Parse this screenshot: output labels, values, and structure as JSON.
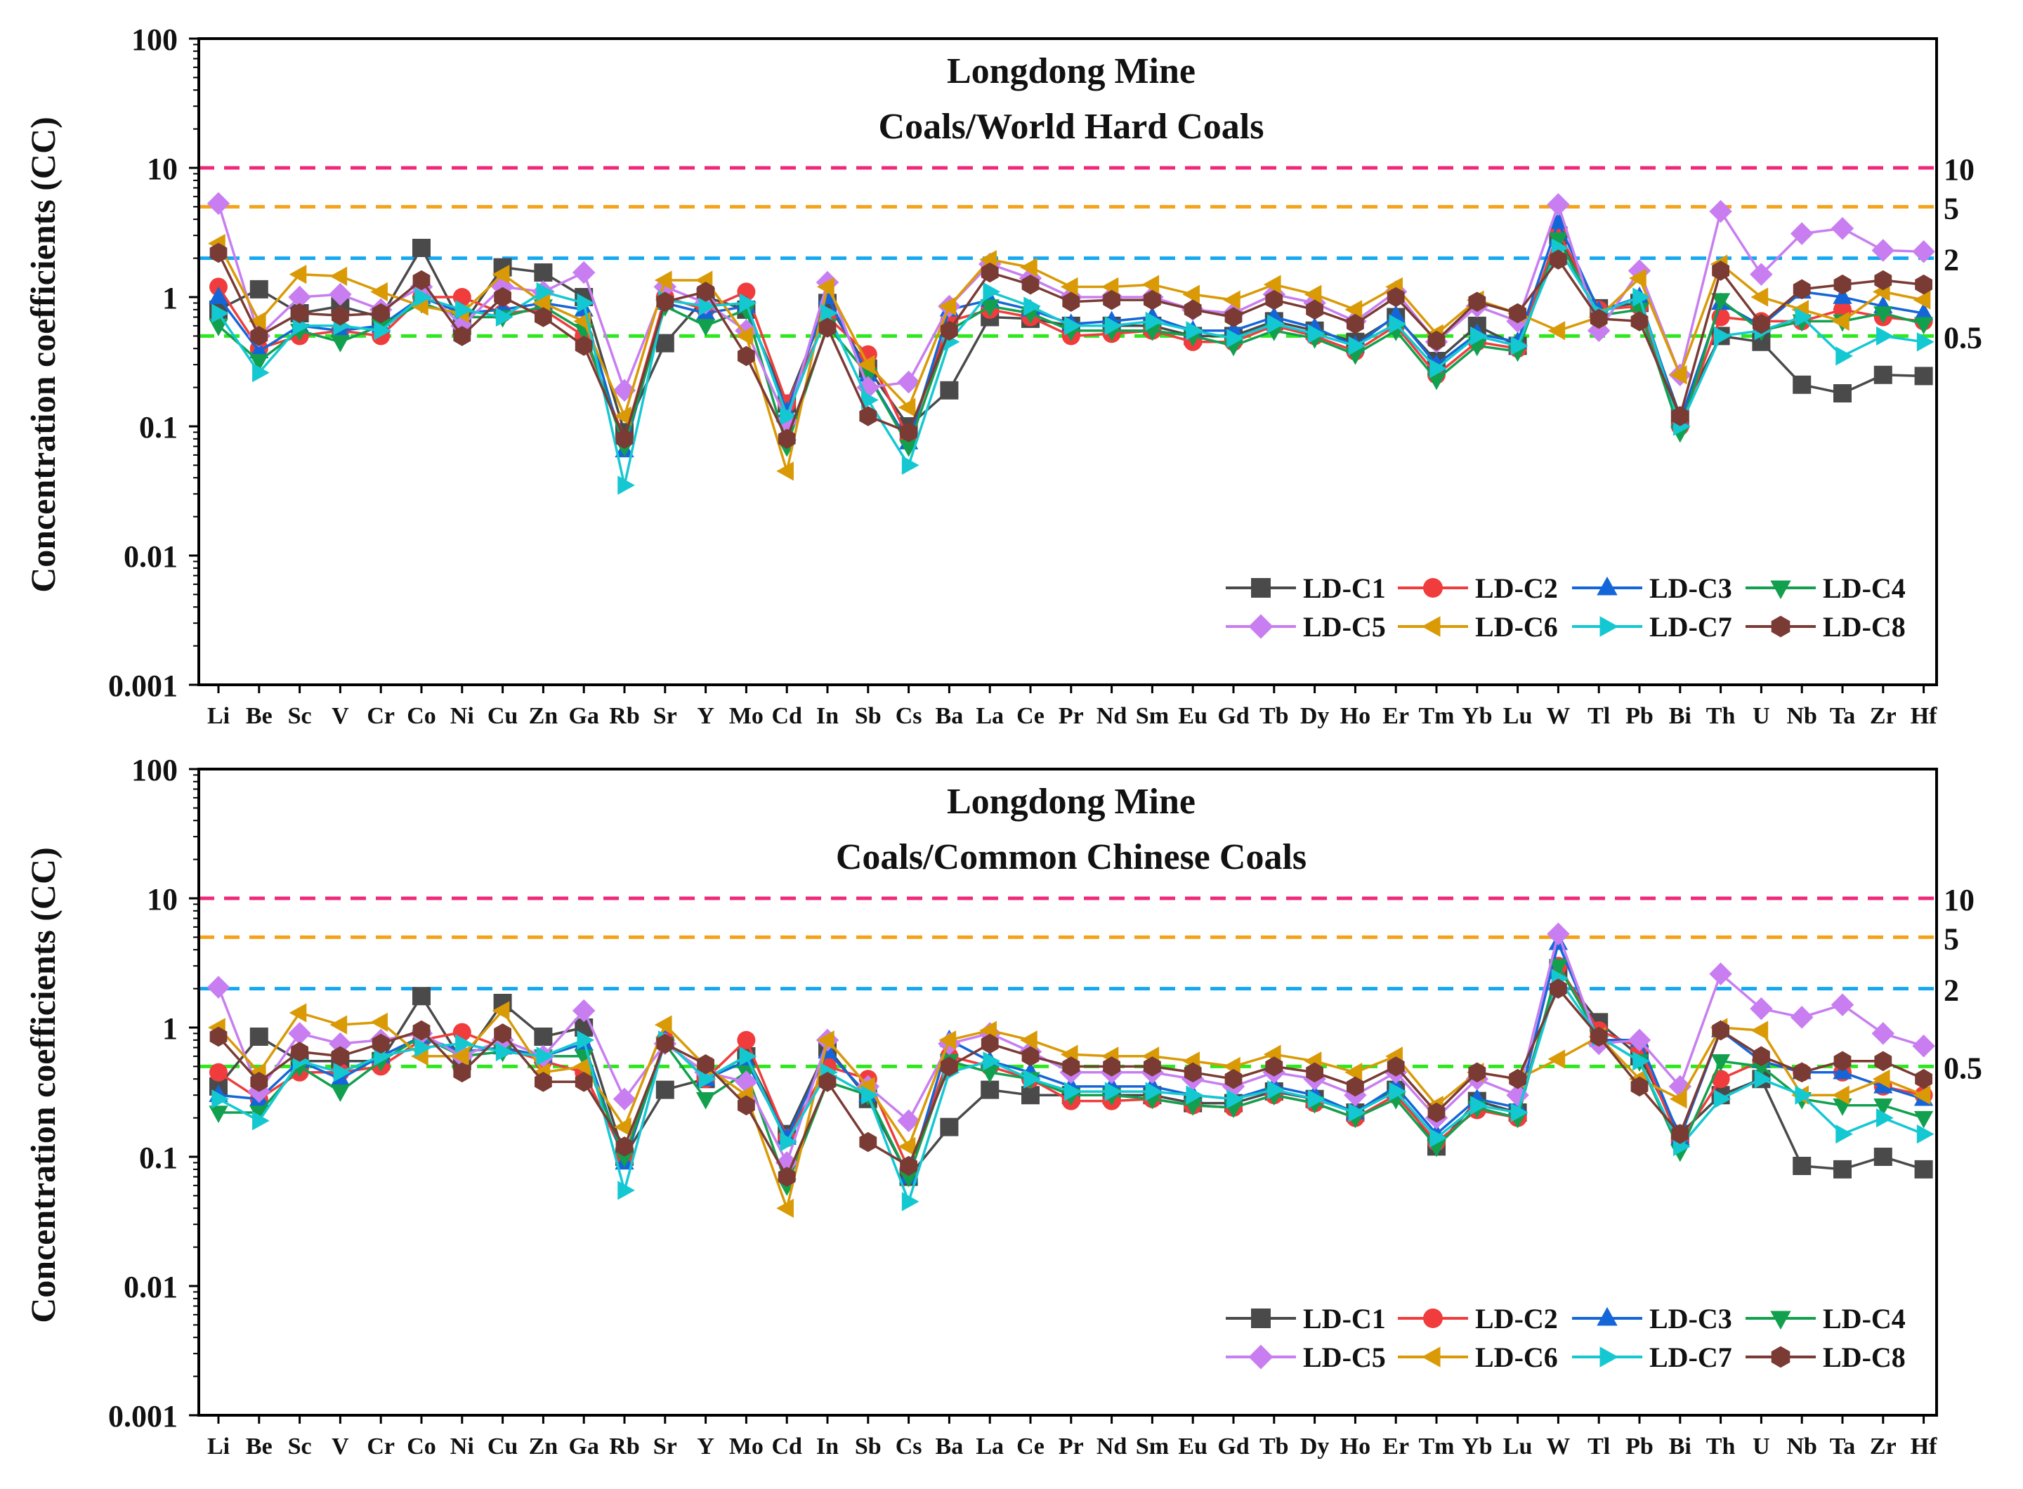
{
  "figure": {
    "y_axis_label": "Concentration coefficients (CC)"
  },
  "styles": {
    "series": [
      {
        "name": "LD-C1",
        "color": "#4a4a4a",
        "marker": "square"
      },
      {
        "name": "LD-C2",
        "color": "#f03c3c",
        "marker": "circle"
      },
      {
        "name": "LD-C3",
        "color": "#1466d8",
        "marker": "triangle-up"
      },
      {
        "name": "LD-C4",
        "color": "#12a04e",
        "marker": "triangle-down"
      },
      {
        "name": "LD-C5",
        "color": "#c87ef0",
        "marker": "diamond"
      },
      {
        "name": "LD-C6",
        "color": "#d99a06",
        "marker": "triangle-left"
      },
      {
        "name": "LD-C7",
        "color": "#14c8d2",
        "marker": "triangle-right"
      },
      {
        "name": "LD-C8",
        "color": "#7a3b34",
        "marker": "hexagon"
      }
    ],
    "reference_lines": [
      {
        "value": 10,
        "label": "10",
        "color": "#f0287a"
      },
      {
        "value": 5,
        "label": "5",
        "color": "#f4a21a"
      },
      {
        "value": 2,
        "label": "2",
        "color": "#14a8f0"
      },
      {
        "value": 0.5,
        "label": "0.5",
        "color": "#2ee81e"
      }
    ]
  },
  "chart_data": [
    {
      "type": "line",
      "title": "Longdong Mine",
      "subtitle": "Coals/World Hard Coals",
      "ylabel": "Concentration coefficients (CC)",
      "yscale": "log",
      "ylim": [
        0.001,
        100
      ],
      "ytick_labels": [
        "0.001",
        "0.01",
        "0.1",
        "1",
        "10",
        "100"
      ],
      "right_axis_labels": [
        "10",
        "5",
        "2",
        "0.5"
      ],
      "legend_position": "lower-right",
      "categories": [
        "Li",
        "Be",
        "Sc",
        "V",
        "Cr",
        "Co",
        "Ni",
        "Cu",
        "Zn",
        "Ga",
        "Rb",
        "Sr",
        "Y",
        "Mo",
        "Cd",
        "In",
        "Sb",
        "Cs",
        "Ba",
        "La",
        "Ce",
        "Pr",
        "Nd",
        "Sm",
        "Eu",
        "Gd",
        "Tb",
        "Dy",
        "Ho",
        "Er",
        "Tm",
        "Yb",
        "Lu",
        "W",
        "Tl",
        "Pb",
        "Bi",
        "Th",
        "U",
        "Nb",
        "Ta",
        "Zr",
        "Hf"
      ],
      "series": [
        {
          "name": "LD-C1",
          "values": [
            0.8,
            1.15,
            0.75,
            0.85,
            0.7,
            2.4,
            0.6,
            1.7,
            1.55,
            1.0,
            0.09,
            0.44,
            1.0,
            0.8,
            0.15,
            0.9,
            0.28,
            0.1,
            0.19,
            0.7,
            0.68,
            0.6,
            0.6,
            0.6,
            0.5,
            0.5,
            0.65,
            0.55,
            0.45,
            0.7,
            0.32,
            0.6,
            0.42,
            3.0,
            0.82,
            0.9,
            0.12,
            0.5,
            0.45,
            0.21,
            0.18,
            0.25,
            0.245
          ]
        },
        {
          "name": "LD-C2",
          "values": [
            1.2,
            0.4,
            0.5,
            0.55,
            0.5,
            1.0,
            1.0,
            0.75,
            0.8,
            0.5,
            0.08,
            1.0,
            0.8,
            1.1,
            0.15,
            0.7,
            0.36,
            0.08,
            0.65,
            0.8,
            0.7,
            0.5,
            0.52,
            0.55,
            0.45,
            0.45,
            0.6,
            0.5,
            0.38,
            0.6,
            0.25,
            0.45,
            0.4,
            3.2,
            0.8,
            0.85,
            0.1,
            0.7,
            0.65,
            0.65,
            0.8,
            0.7,
            0.65
          ]
        },
        {
          "name": "LD-C3",
          "values": [
            1.0,
            0.38,
            0.6,
            0.55,
            0.6,
            1.0,
            0.75,
            0.8,
            0.9,
            0.8,
            0.065,
            0.9,
            0.75,
            0.85,
            0.13,
            1.0,
            0.25,
            0.075,
            0.8,
            0.95,
            0.8,
            0.62,
            0.65,
            0.7,
            0.55,
            0.55,
            0.7,
            0.58,
            0.42,
            0.72,
            0.3,
            0.52,
            0.45,
            3.8,
            0.78,
            1.0,
            0.11,
            0.9,
            0.6,
            1.1,
            1.0,
            0.85,
            0.75
          ]
        },
        {
          "name": "LD-C4",
          "values": [
            0.6,
            0.32,
            0.55,
            0.45,
            0.6,
            0.9,
            0.7,
            0.7,
            0.85,
            0.55,
            0.07,
            0.85,
            0.6,
            0.8,
            0.07,
            0.6,
            0.25,
            0.07,
            0.55,
            0.85,
            0.75,
            0.55,
            0.55,
            0.55,
            0.5,
            0.42,
            0.55,
            0.48,
            0.36,
            0.55,
            0.23,
            0.42,
            0.38,
            2.8,
            0.72,
            0.8,
            0.09,
            0.95,
            0.55,
            0.65,
            0.65,
            0.75,
            0.62
          ]
        },
        {
          "name": "LD-C5",
          "values": [
            5.3,
            0.5,
            1.0,
            1.05,
            0.8,
            1.2,
            0.6,
            1.2,
            1.1,
            1.55,
            0.19,
            1.2,
            0.9,
            0.55,
            0.11,
            1.3,
            0.2,
            0.22,
            0.85,
            1.8,
            1.4,
            1.0,
            1.0,
            1.0,
            0.8,
            0.75,
            1.05,
            0.9,
            0.65,
            1.1,
            0.45,
            0.85,
            0.65,
            5.2,
            0.55,
            1.6,
            0.25,
            4.6,
            1.5,
            3.1,
            3.4,
            2.3,
            2.25
          ]
        },
        {
          "name": "LD-C6",
          "values": [
            2.6,
            0.65,
            1.5,
            1.45,
            1.1,
            0.85,
            0.75,
            1.5,
            0.9,
            0.65,
            0.12,
            1.35,
            1.35,
            0.5,
            0.045,
            1.2,
            0.3,
            0.14,
            0.85,
            1.95,
            1.7,
            1.2,
            1.2,
            1.25,
            1.05,
            0.95,
            1.25,
            1.05,
            0.8,
            1.2,
            0.52,
            0.95,
            0.75,
            0.55,
            0.7,
            1.4,
            0.25,
            1.8,
            1.0,
            0.8,
            0.65,
            1.1,
            0.95
          ]
        },
        {
          "name": "LD-C7",
          "values": [
            0.75,
            0.26,
            0.6,
            0.6,
            0.55,
            1.0,
            0.8,
            0.7,
            1.1,
            0.9,
            0.035,
            0.95,
            0.85,
            0.9,
            0.12,
            0.75,
            0.16,
            0.05,
            0.45,
            1.1,
            0.85,
            0.6,
            0.6,
            0.65,
            0.55,
            0.48,
            0.62,
            0.52,
            0.42,
            0.62,
            0.28,
            0.5,
            0.42,
            2.4,
            0.75,
            1.0,
            0.1,
            0.5,
            0.55,
            0.7,
            0.35,
            0.5,
            0.45
          ]
        },
        {
          "name": "LD-C8",
          "values": [
            2.2,
            0.5,
            0.75,
            0.72,
            0.75,
            1.35,
            0.5,
            1.0,
            0.7,
            0.42,
            0.08,
            0.92,
            1.1,
            0.35,
            0.08,
            0.58,
            0.12,
            0.09,
            0.55,
            1.55,
            1.25,
            0.92,
            0.95,
            0.95,
            0.8,
            0.7,
            0.95,
            0.8,
            0.62,
            1.0,
            0.46,
            0.92,
            0.75,
            1.95,
            0.68,
            0.65,
            0.12,
            1.6,
            0.62,
            1.15,
            1.25,
            1.35,
            1.25
          ]
        }
      ]
    },
    {
      "type": "line",
      "title": "Longdong Mine",
      "subtitle": "Coals/Common Chinese Coals",
      "ylabel": "Concentration coefficients (CC)",
      "yscale": "log",
      "ylim": [
        0.001,
        100
      ],
      "ytick_labels": [
        "0.001",
        "0.01",
        "0.1",
        "1",
        "10",
        "100"
      ],
      "right_axis_labels": [
        "10",
        "5",
        "2",
        "0.5"
      ],
      "legend_position": "lower-right",
      "categories": [
        "Li",
        "Be",
        "Sc",
        "V",
        "Cr",
        "Co",
        "Ni",
        "Cu",
        "Zn",
        "Ga",
        "Rb",
        "Sr",
        "Y",
        "Mo",
        "Cd",
        "In",
        "Sb",
        "Cs",
        "Ba",
        "La",
        "Ce",
        "Pr",
        "Nd",
        "Sm",
        "Eu",
        "Gd",
        "Tb",
        "Dy",
        "Ho",
        "Er",
        "Tm",
        "Yb",
        "Lu",
        "W",
        "Tl",
        "Pb",
        "Bi",
        "Th",
        "U",
        "Nb",
        "Ta",
        "Zr",
        "Hf"
      ],
      "series": [
        {
          "name": "LD-C1",
          "values": [
            0.35,
            0.85,
            0.55,
            0.55,
            0.55,
            1.75,
            0.55,
            1.55,
            0.85,
            1.0,
            0.1,
            0.33,
            0.4,
            0.6,
            0.15,
            0.7,
            0.28,
            0.07,
            0.17,
            0.33,
            0.3,
            0.3,
            0.3,
            0.3,
            0.26,
            0.26,
            0.32,
            0.28,
            0.22,
            0.33,
            0.12,
            0.27,
            0.22,
            2.8,
            1.1,
            0.6,
            0.15,
            0.3,
            0.4,
            0.085,
            0.08,
            0.1,
            0.08
          ]
        },
        {
          "name": "LD-C2",
          "values": [
            0.45,
            0.28,
            0.45,
            0.45,
            0.5,
            0.8,
            0.92,
            0.7,
            0.55,
            0.45,
            0.1,
            0.8,
            0.4,
            0.8,
            0.14,
            0.5,
            0.4,
            0.08,
            0.6,
            0.5,
            0.4,
            0.27,
            0.27,
            0.28,
            0.25,
            0.24,
            0.3,
            0.26,
            0.2,
            0.3,
            0.13,
            0.23,
            0.2,
            3.0,
            0.95,
            0.7,
            0.13,
            0.4,
            0.55,
            0.45,
            0.45,
            0.35,
            0.3
          ]
        },
        {
          "name": "LD-C3",
          "values": [
            0.3,
            0.28,
            0.55,
            0.4,
            0.6,
            0.85,
            0.65,
            0.7,
            0.6,
            0.75,
            0.09,
            0.8,
            0.4,
            0.55,
            0.14,
            0.65,
            0.3,
            0.07,
            0.8,
            0.55,
            0.45,
            0.35,
            0.35,
            0.35,
            0.3,
            0.28,
            0.35,
            0.3,
            0.22,
            0.35,
            0.15,
            0.28,
            0.24,
            4.5,
            0.8,
            0.8,
            0.14,
            0.95,
            0.55,
            0.45,
            0.45,
            0.35,
            0.28
          ]
        },
        {
          "name": "LD-C4",
          "values": [
            0.22,
            0.22,
            0.5,
            0.32,
            0.55,
            0.85,
            0.6,
            0.65,
            0.6,
            0.6,
            0.1,
            0.75,
            0.28,
            0.45,
            0.06,
            0.38,
            0.3,
            0.07,
            0.55,
            0.45,
            0.4,
            0.3,
            0.3,
            0.28,
            0.25,
            0.24,
            0.3,
            0.26,
            0.2,
            0.28,
            0.12,
            0.24,
            0.2,
            3.0,
            0.85,
            0.55,
            0.11,
            0.55,
            0.5,
            0.28,
            0.25,
            0.25,
            0.2
          ]
        },
        {
          "name": "LD-C5",
          "values": [
            2.05,
            0.32,
            0.9,
            0.75,
            0.8,
            0.9,
            0.6,
            0.8,
            0.6,
            1.35,
            0.28,
            0.75,
            0.45,
            0.38,
            0.09,
            0.8,
            0.35,
            0.19,
            0.75,
            0.9,
            0.65,
            0.45,
            0.45,
            0.45,
            0.4,
            0.35,
            0.45,
            0.4,
            0.3,
            0.45,
            0.2,
            0.4,
            0.3,
            5.3,
            0.75,
            0.8,
            0.35,
            2.6,
            1.4,
            1.2,
            1.5,
            0.9,
            0.72
          ]
        },
        {
          "name": "LD-C6",
          "values": [
            1.0,
            0.45,
            1.3,
            1.05,
            1.1,
            0.6,
            0.6,
            1.35,
            0.45,
            0.5,
            0.17,
            1.05,
            0.5,
            0.3,
            0.04,
            0.8,
            0.35,
            0.12,
            0.8,
            0.95,
            0.8,
            0.62,
            0.6,
            0.6,
            0.55,
            0.5,
            0.62,
            0.55,
            0.45,
            0.6,
            0.25,
            0.45,
            0.4,
            0.57,
            0.85,
            0.4,
            0.28,
            1.0,
            0.95,
            0.3,
            0.3,
            0.4,
            0.3
          ]
        },
        {
          "name": "LD-C7",
          "values": [
            0.28,
            0.19,
            0.55,
            0.45,
            0.6,
            0.7,
            0.75,
            0.65,
            0.6,
            0.8,
            0.055,
            0.8,
            0.4,
            0.6,
            0.13,
            0.45,
            0.3,
            0.045,
            0.45,
            0.55,
            0.4,
            0.32,
            0.32,
            0.32,
            0.3,
            0.28,
            0.33,
            0.28,
            0.22,
            0.32,
            0.14,
            0.25,
            0.22,
            2.4,
            0.85,
            0.55,
            0.12,
            0.28,
            0.4,
            0.3,
            0.15,
            0.2,
            0.15
          ]
        },
        {
          "name": "LD-C8",
          "values": [
            0.85,
            0.38,
            0.65,
            0.6,
            0.75,
            0.95,
            0.45,
            0.9,
            0.38,
            0.38,
            0.12,
            0.75,
            0.52,
            0.25,
            0.07,
            0.38,
            0.13,
            0.085,
            0.5,
            0.75,
            0.6,
            0.5,
            0.5,
            0.5,
            0.45,
            0.4,
            0.5,
            0.45,
            0.35,
            0.5,
            0.22,
            0.45,
            0.4,
            2.0,
            0.85,
            0.35,
            0.15,
            0.95,
            0.6,
            0.45,
            0.55,
            0.55,
            0.4
          ]
        }
      ]
    }
  ]
}
